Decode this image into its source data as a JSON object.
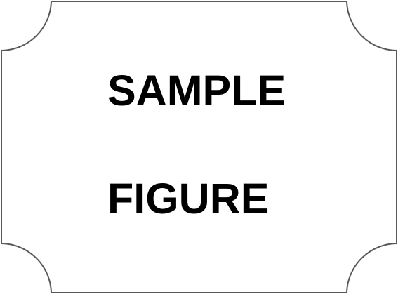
{
  "figure": {
    "line_1": "SAMPLE",
    "line_2": "FIGURE",
    "frame_shape": "rectangle-with-concave-rounded-corners",
    "border_color": "#595959",
    "background_color": "#ffffff",
    "text_color": "#000000"
  }
}
